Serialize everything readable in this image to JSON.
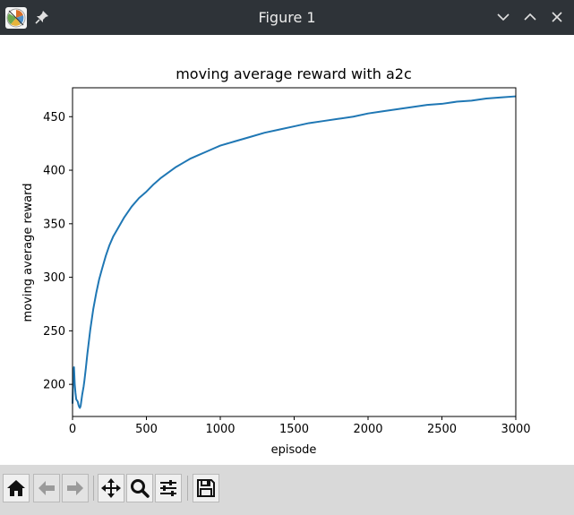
{
  "window": {
    "title": "Figure 1",
    "app_icon": "matplotlib-icon",
    "pin_icon": "pin-icon",
    "controls": [
      "minimize-chevron-icon",
      "maximize-chevron-icon",
      "close-icon"
    ],
    "colors": {
      "titlebar": "#2e3338",
      "toolbar": "#d9d9d9"
    }
  },
  "toolbar": {
    "buttons": [
      {
        "name": "home-button",
        "icon": "home-icon"
      },
      {
        "name": "back-button",
        "icon": "back-arrow-icon"
      },
      {
        "name": "forward-button",
        "icon": "forward-arrow-icon"
      },
      {
        "name": "pan-button",
        "icon": "pan-move-icon"
      },
      {
        "name": "zoom-button",
        "icon": "zoom-magnifier-icon"
      },
      {
        "name": "configure-subplots-button",
        "icon": "sliders-icon"
      },
      {
        "name": "save-button",
        "icon": "floppy-disk-icon"
      }
    ]
  },
  "chart_data": {
    "type": "line",
    "title": "moving average reward with a2c",
    "xlabel": "episode",
    "ylabel": "moving average reward",
    "xlim": [
      0,
      3000
    ],
    "ylim": [
      170,
      477
    ],
    "xticks": [
      0,
      500,
      1000,
      1500,
      2000,
      2500,
      3000
    ],
    "yticks": [
      200,
      250,
      300,
      350,
      400,
      450
    ],
    "grid": false,
    "line_color": "#1f77b4",
    "series": [
      {
        "x": [
          0,
          5,
          10,
          15,
          20,
          25,
          30,
          35,
          40,
          45,
          50,
          55,
          60,
          65,
          70,
          75,
          80,
          90,
          100,
          120,
          140,
          160,
          180,
          200,
          225,
          250,
          275,
          300,
          350,
          400,
          450,
          500,
          550,
          600,
          650,
          700,
          750,
          800,
          850,
          900,
          950,
          1000,
          1100,
          1200,
          1300,
          1400,
          1500,
          1600,
          1700,
          1800,
          1900,
          2000,
          2100,
          2200,
          2300,
          2400,
          2500,
          2600,
          2700,
          2800,
          2900,
          3000
        ],
        "y": [
          182,
          208,
          216,
          200,
          192,
          186,
          185,
          184,
          181,
          179,
          178,
          180,
          185,
          190,
          194,
          198,
          203,
          215,
          228,
          251,
          270,
          285,
          298,
          308,
          320,
          330,
          338,
          344,
          356,
          366,
          374,
          380,
          387,
          393,
          398,
          403,
          407,
          411,
          414,
          417,
          420,
          423,
          427,
          431,
          435,
          438,
          441,
          444,
          446,
          448,
          450,
          453,
          455,
          457,
          459,
          461,
          462,
          464,
          465,
          467,
          468,
          469
        ]
      }
    ]
  }
}
